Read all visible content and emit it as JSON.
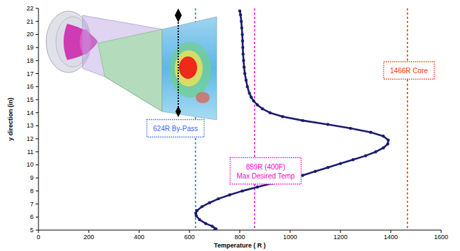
{
  "chart_data": {
    "type": "line",
    "x_label": "Temperature ( R )",
    "y_label": "y direction (in)",
    "x": [
      700,
      705,
      690,
      665,
      640,
      627,
      625,
      630,
      650,
      680,
      715,
      760,
      810,
      870,
      930,
      990,
      1050,
      1100,
      1150,
      1200,
      1250,
      1300,
      1340,
      1370,
      1388,
      1390,
      1370,
      1320,
      1240,
      1150,
      1050,
      970,
      920,
      890,
      870,
      855,
      845,
      838,
      830,
      825,
      820,
      817,
      815,
      813,
      812,
      811,
      810,
      808,
      806,
      803,
      800
    ],
    "series": [
      {
        "color": "#1b1b6e",
        "marker": "circle",
        "line_style": "solid",
        "values": [
          5.0,
          5.1,
          5.3,
          5.5,
          5.8,
          6.1,
          6.3,
          6.5,
          6.8,
          7.1,
          7.4,
          7.7,
          8.0,
          8.3,
          8.6,
          8.9,
          9.2,
          9.5,
          9.8,
          10.1,
          10.4,
          10.7,
          11.0,
          11.3,
          11.6,
          11.9,
          12.2,
          12.5,
          12.8,
          13.1,
          13.4,
          13.7,
          14.0,
          14.3,
          14.6,
          14.9,
          15.2,
          15.5,
          16.0,
          16.5,
          17.0,
          17.5,
          18.0,
          18.5,
          19.0,
          19.5,
          20.0,
          20.5,
          21.0,
          21.5,
          21.8
        ]
      }
    ],
    "xlim": [
      0,
      1600
    ],
    "xticks": [
      0,
      200,
      400,
      600,
      800,
      1000,
      1200,
      1400,
      1600
    ],
    "ylim": [
      5,
      22
    ],
    "yticks": [
      5,
      6,
      7,
      8,
      9,
      10,
      11,
      12,
      13,
      14,
      15,
      16,
      17,
      18,
      19,
      20,
      21,
      22
    ],
    "grid": false,
    "reference_lines": [
      {
        "value": 624,
        "color": "#3366ff",
        "line_style": "dashed",
        "label_lines": [
          "624R By-Pass"
        ]
      },
      {
        "value": 859,
        "color": "#ff00cc",
        "line_style": "dashed",
        "label_lines": [
          "859R (400F)",
          "Max Desired Temp"
        ]
      },
      {
        "value": 1466,
        "color": "#ff3300",
        "line_style": "dashed",
        "label_lines": [
          "1466R Core"
        ]
      }
    ]
  }
}
